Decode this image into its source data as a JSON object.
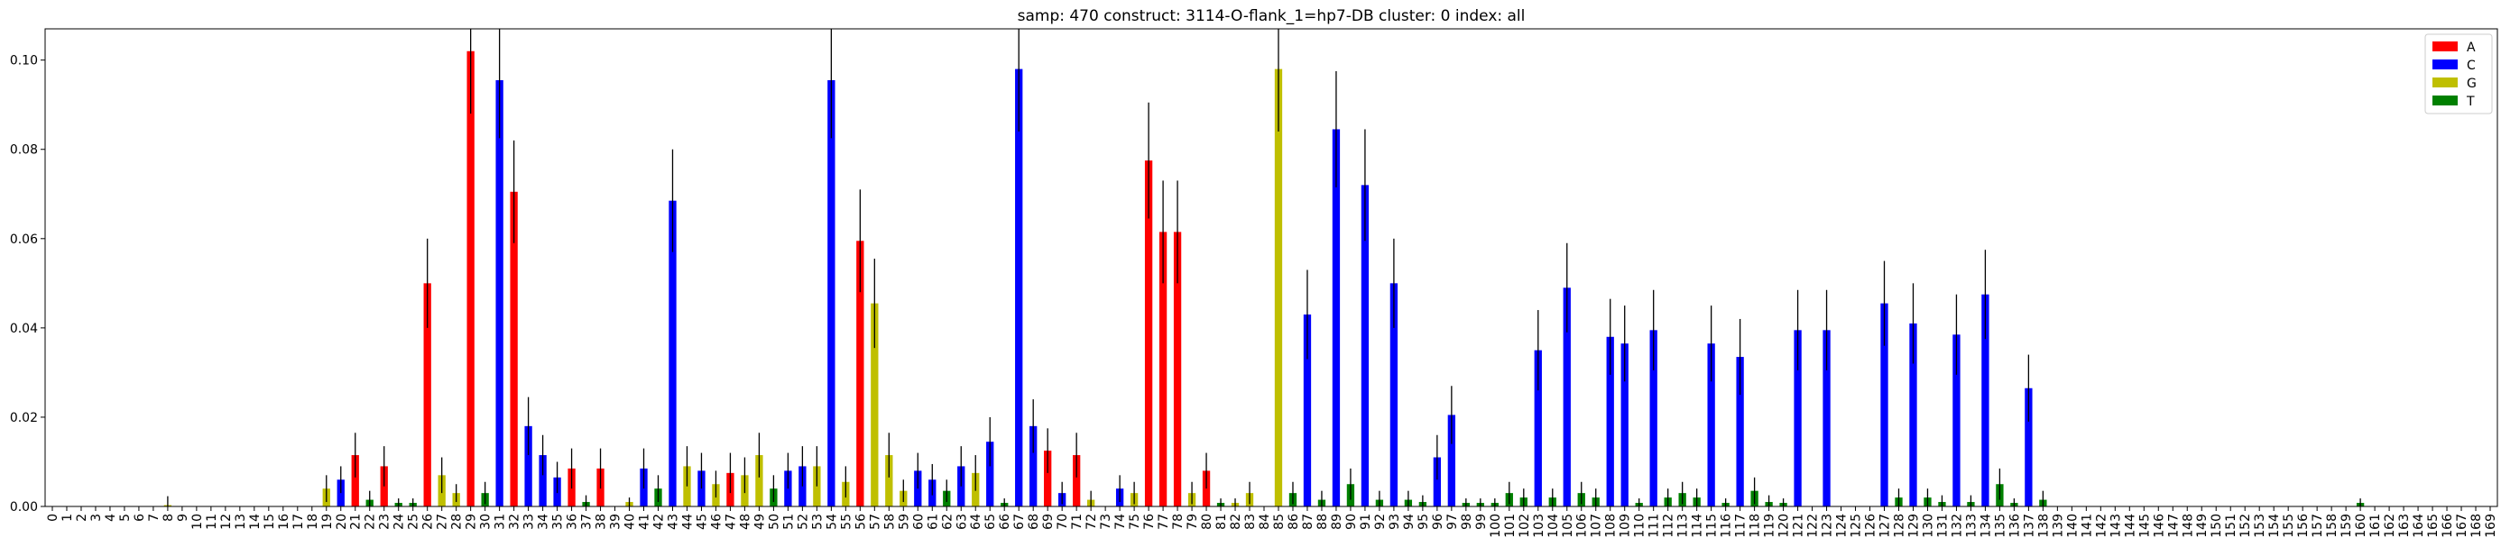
{
  "chart_data": {
    "type": "bar",
    "title": "samp: 470  construct: 3114-O-flank_1=hp7-DB  cluster: 0  index: all",
    "xlabel": "",
    "ylabel": "",
    "ylim": [
      0,
      0.107
    ],
    "yticks": [
      "0.00",
      "0.02",
      "0.04",
      "0.06",
      "0.08",
      "0.10"
    ],
    "x_count": 170,
    "grid": false,
    "legend_position": "top-right",
    "series": [
      {
        "name": "A",
        "color": "#ff0000"
      },
      {
        "name": "C",
        "color": "#0000ff"
      },
      {
        "name": "G",
        "color": "#bfbf00"
      },
      {
        "name": "T",
        "color": "#008000"
      }
    ],
    "bars": [
      [
        8,
        "G",
        0.0003,
        0.002
      ],
      [
        19,
        "G",
        0.004,
        0.003
      ],
      [
        20,
        "C",
        0.006,
        0.003
      ],
      [
        21,
        "A",
        0.0115,
        0.005
      ],
      [
        22,
        "T",
        0.0015,
        0.002
      ],
      [
        23,
        "A",
        0.009,
        0.0045
      ],
      [
        24,
        "T",
        0.0008,
        0.001
      ],
      [
        25,
        "T",
        0.0008,
        0.001
      ],
      [
        26,
        "A",
        0.05,
        0.01
      ],
      [
        27,
        "G",
        0.007,
        0.004
      ],
      [
        28,
        "G",
        0.003,
        0.002
      ],
      [
        29,
        "A",
        0.102,
        0.014
      ],
      [
        30,
        "T",
        0.003,
        0.0025
      ],
      [
        31,
        "C",
        0.0955,
        0.013
      ],
      [
        32,
        "A",
        0.0705,
        0.0115
      ],
      [
        33,
        "C",
        0.018,
        0.0065
      ],
      [
        34,
        "C",
        0.0115,
        0.0045
      ],
      [
        35,
        "C",
        0.0065,
        0.0035
      ],
      [
        36,
        "A",
        0.0085,
        0.0045
      ],
      [
        37,
        "T",
        0.001,
        0.0015
      ],
      [
        38,
        "A",
        0.0085,
        0.0045
      ],
      [
        40,
        "G",
        0.001,
        0.001
      ],
      [
        41,
        "C",
        0.0085,
        0.0045
      ],
      [
        42,
        "T",
        0.004,
        0.003
      ],
      [
        43,
        "C",
        0.0685,
        0.0115
      ],
      [
        44,
        "G",
        0.009,
        0.0045
      ],
      [
        45,
        "C",
        0.008,
        0.004
      ],
      [
        46,
        "G",
        0.005,
        0.003
      ],
      [
        47,
        "A",
        0.0075,
        0.0045
      ],
      [
        48,
        "G",
        0.007,
        0.004
      ],
      [
        49,
        "G",
        0.0115,
        0.005
      ],
      [
        50,
        "T",
        0.004,
        0.003
      ],
      [
        51,
        "C",
        0.008,
        0.004
      ],
      [
        52,
        "C",
        0.009,
        0.0045
      ],
      [
        53,
        "G",
        0.009,
        0.0045
      ],
      [
        54,
        "C",
        0.0955,
        0.013
      ],
      [
        55,
        "G",
        0.0055,
        0.0035
      ],
      [
        56,
        "A",
        0.0595,
        0.0115
      ],
      [
        57,
        "G",
        0.0455,
        0.01
      ],
      [
        58,
        "G",
        0.0115,
        0.005
      ],
      [
        59,
        "G",
        0.0035,
        0.0025
      ],
      [
        60,
        "C",
        0.008,
        0.004
      ],
      [
        61,
        "C",
        0.006,
        0.0035
      ],
      [
        62,
        "T",
        0.0035,
        0.0025
      ],
      [
        63,
        "C",
        0.009,
        0.0045
      ],
      [
        64,
        "G",
        0.0075,
        0.004
      ],
      [
        65,
        "C",
        0.0145,
        0.0055
      ],
      [
        66,
        "T",
        0.0008,
        0.001
      ],
      [
        67,
        "C",
        0.098,
        0.014
      ],
      [
        68,
        "C",
        0.018,
        0.006
      ],
      [
        69,
        "A",
        0.0125,
        0.005
      ],
      [
        70,
        "C",
        0.003,
        0.0025
      ],
      [
        71,
        "A",
        0.0115,
        0.005
      ],
      [
        72,
        "G",
        0.0015,
        0.002
      ],
      [
        74,
        "C",
        0.004,
        0.003
      ],
      [
        75,
        "G",
        0.003,
        0.0025
      ],
      [
        76,
        "A",
        0.0775,
        0.013
      ],
      [
        77,
        "A",
        0.0615,
        0.0115
      ],
      [
        78,
        "A",
        0.0615,
        0.0115
      ],
      [
        79,
        "G",
        0.003,
        0.0025
      ],
      [
        80,
        "A",
        0.008,
        0.004
      ],
      [
        81,
        "T",
        0.0008,
        0.001
      ],
      [
        82,
        "G",
        0.0008,
        0.001
      ],
      [
        83,
        "G",
        0.003,
        0.0025
      ],
      [
        85,
        "G",
        0.098,
        0.014
      ],
      [
        86,
        "T",
        0.003,
        0.0025
      ],
      [
        87,
        "C",
        0.043,
        0.01
      ],
      [
        88,
        "T",
        0.0015,
        0.002
      ],
      [
        89,
        "C",
        0.0845,
        0.013
      ],
      [
        90,
        "T",
        0.005,
        0.0035
      ],
      [
        91,
        "C",
        0.072,
        0.0125
      ],
      [
        92,
        "T",
        0.0015,
        0.002
      ],
      [
        93,
        "C",
        0.05,
        0.01
      ],
      [
        94,
        "T",
        0.0015,
        0.002
      ],
      [
        95,
        "T",
        0.001,
        0.0015
      ],
      [
        96,
        "C",
        0.011,
        0.005
      ],
      [
        97,
        "C",
        0.0205,
        0.0065
      ],
      [
        98,
        "T",
        0.0008,
        0.001
      ],
      [
        99,
        "T",
        0.0008,
        0.001
      ],
      [
        100,
        "T",
        0.0008,
        0.001
      ],
      [
        101,
        "T",
        0.003,
        0.0025
      ],
      [
        102,
        "T",
        0.002,
        0.002
      ],
      [
        103,
        "C",
        0.035,
        0.009
      ],
      [
        104,
        "T",
        0.002,
        0.002
      ],
      [
        105,
        "C",
        0.049,
        0.01
      ],
      [
        106,
        "T",
        0.003,
        0.0025
      ],
      [
        107,
        "T",
        0.002,
        0.002
      ],
      [
        108,
        "C",
        0.038,
        0.0085
      ],
      [
        109,
        "C",
        0.0365,
        0.0085
      ],
      [
        110,
        "T",
        0.0008,
        0.001
      ],
      [
        111,
        "C",
        0.0395,
        0.009
      ],
      [
        112,
        "T",
        0.002,
        0.002
      ],
      [
        113,
        "T",
        0.003,
        0.0025
      ],
      [
        114,
        "T",
        0.002,
        0.002
      ],
      [
        115,
        "C",
        0.0365,
        0.0085
      ],
      [
        116,
        "T",
        0.0008,
        0.001
      ],
      [
        117,
        "C",
        0.0335,
        0.0085
      ],
      [
        118,
        "T",
        0.0035,
        0.003
      ],
      [
        119,
        "T",
        0.001,
        0.0015
      ],
      [
        120,
        "T",
        0.0008,
        0.001
      ],
      [
        121,
        "C",
        0.0395,
        0.009
      ],
      [
        123,
        "C",
        0.0395,
        0.009
      ],
      [
        127,
        "C",
        0.0455,
        0.0095
      ],
      [
        128,
        "T",
        0.002,
        0.002
      ],
      [
        129,
        "C",
        0.041,
        0.009
      ],
      [
        130,
        "T",
        0.002,
        0.002
      ],
      [
        131,
        "T",
        0.001,
        0.0015
      ],
      [
        132,
        "C",
        0.0385,
        0.009
      ],
      [
        133,
        "T",
        0.001,
        0.0015
      ],
      [
        134,
        "C",
        0.0475,
        0.01
      ],
      [
        135,
        "T",
        0.005,
        0.0035
      ],
      [
        136,
        "T",
        0.0008,
        0.001
      ],
      [
        137,
        "C",
        0.0265,
        0.0075
      ],
      [
        138,
        "T",
        0.0015,
        0.002
      ],
      [
        160,
        "T",
        0.0008,
        0.001
      ]
    ]
  }
}
